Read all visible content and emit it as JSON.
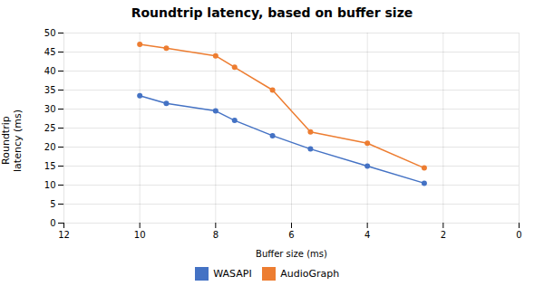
{
  "chart_data": {
    "type": "line",
    "title": "Roundtrip latency, based on buffer size",
    "x_label": "Buffer size (ms)",
    "y_label": "Roundtrip\nlatency (ms)",
    "x": [
      10,
      9.3,
      8.0,
      7.5,
      6.5,
      5.5,
      4.0,
      2.5
    ],
    "series": [
      {
        "name": "WASAPI",
        "color": "#4472c4",
        "values": [
          33.5,
          31.5,
          29.5,
          27.0,
          23.0,
          19.5,
          15.0,
          10.5
        ]
      },
      {
        "name": "AudioGraph",
        "color": "#ed7d31",
        "values": [
          47.0,
          46.0,
          44.0,
          41.0,
          35.0,
          24.0,
          21.0,
          14.5
        ]
      }
    ],
    "xlim": [
      12,
      0
    ],
    "ylim": [
      0,
      50
    ],
    "xticks": [
      12,
      10,
      8,
      6,
      4,
      2,
      0
    ],
    "yticks": [
      0,
      5,
      10,
      15,
      20,
      25,
      30,
      35,
      40,
      45,
      50
    ],
    "grid": true,
    "legend": "bottom",
    "marker": "circle"
  }
}
